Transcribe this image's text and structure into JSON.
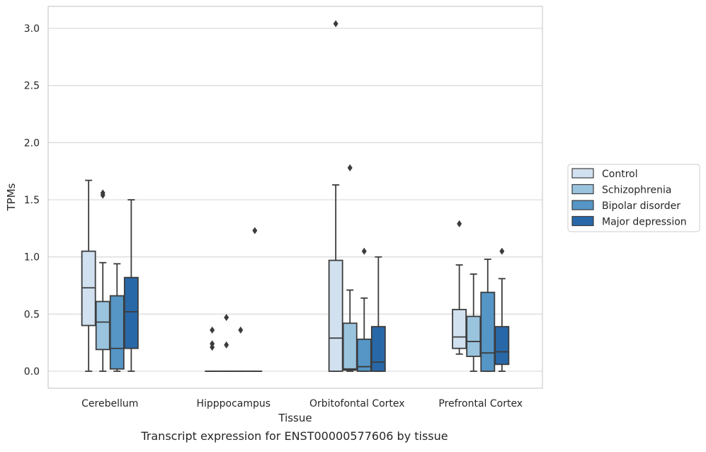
{
  "caption": "Transcript expression for ENST00000577606 by tissue",
  "chart_data": {
    "type": "box",
    "xlabel": "Tissue",
    "ylabel": "TPMs",
    "ylim": [
      -0.15,
      3.2
    ],
    "yticks": [
      0.0,
      0.5,
      1.0,
      1.5,
      2.0,
      2.5,
      3.0
    ],
    "ytick_labels": [
      "0.0",
      "0.5",
      "1.0",
      "1.5",
      "2.0",
      "2.5",
      "3.0"
    ],
    "grid": "horizontal",
    "legend_position": "right",
    "categories": [
      "Cerebellum",
      "Hipppocampus",
      "Orbitofontal Cortex",
      "Prefrontal Cortex"
    ],
    "series": [
      {
        "name": "Control",
        "color": "#d1e1f0",
        "boxes": [
          {
            "whislo": 0.0,
            "q1": 0.4,
            "med": 0.73,
            "q3": 1.05,
            "whishi": 1.67,
            "fliers": []
          },
          {
            "whislo": 0.0,
            "q1": 0.0,
            "med": 0.0,
            "q3": 0.0,
            "whishi": 0.0,
            "fliers": [
              0.21,
              0.24,
              0.36
            ]
          },
          {
            "whislo": 0.0,
            "q1": 0.0,
            "med": 0.29,
            "q3": 0.97,
            "whishi": 1.63,
            "fliers": [
              3.04
            ]
          },
          {
            "whislo": 0.15,
            "q1": 0.2,
            "med": 0.3,
            "q3": 0.54,
            "whishi": 0.93,
            "fliers": [
              1.29
            ]
          }
        ]
      },
      {
        "name": "Schizophrenia",
        "color": "#9ac3de",
        "boxes": [
          {
            "whislo": 0.0,
            "q1": 0.19,
            "med": 0.43,
            "q3": 0.61,
            "whishi": 0.95,
            "fliers": [
              1.54,
              1.56
            ]
          },
          {
            "whislo": 0.0,
            "q1": 0.0,
            "med": 0.0,
            "q3": 0.0,
            "whishi": 0.0,
            "fliers": [
              0.23,
              0.47
            ]
          },
          {
            "whislo": 0.0,
            "q1": 0.01,
            "med": 0.02,
            "q3": 0.42,
            "whishi": 0.71,
            "fliers": [
              1.78
            ]
          },
          {
            "whislo": 0.0,
            "q1": 0.13,
            "med": 0.26,
            "q3": 0.48,
            "whishi": 0.85,
            "fliers": []
          }
        ]
      },
      {
        "name": "Bipolar disorder",
        "color": "#5596c6",
        "boxes": [
          {
            "whislo": 0.0,
            "q1": 0.02,
            "med": 0.2,
            "q3": 0.66,
            "whishi": 0.94,
            "fliers": []
          },
          {
            "whislo": 0.0,
            "q1": 0.0,
            "med": 0.0,
            "q3": 0.0,
            "whishi": 0.0,
            "fliers": [
              0.36
            ]
          },
          {
            "whislo": 0.0,
            "q1": 0.0,
            "med": 0.04,
            "q3": 0.28,
            "whishi": 0.64,
            "fliers": [
              1.05
            ]
          },
          {
            "whislo": 0.0,
            "q1": 0.0,
            "med": 0.16,
            "q3": 0.69,
            "whishi": 0.98,
            "fliers": []
          }
        ]
      },
      {
        "name": "Major depression",
        "color": "#2868a8",
        "boxes": [
          {
            "whislo": 0.0,
            "q1": 0.2,
            "med": 0.52,
            "q3": 0.82,
            "whishi": 1.5,
            "fliers": []
          },
          {
            "whislo": 0.0,
            "q1": 0.0,
            "med": 0.0,
            "q3": 0.0,
            "whishi": 0.0,
            "fliers": [
              1.23
            ]
          },
          {
            "whislo": 0.0,
            "q1": 0.0,
            "med": 0.08,
            "q3": 0.39,
            "whishi": 1.0,
            "fliers": []
          },
          {
            "whislo": 0.0,
            "q1": 0.06,
            "med": 0.17,
            "q3": 0.39,
            "whishi": 0.81,
            "fliers": [
              1.05
            ]
          }
        ]
      }
    ]
  }
}
